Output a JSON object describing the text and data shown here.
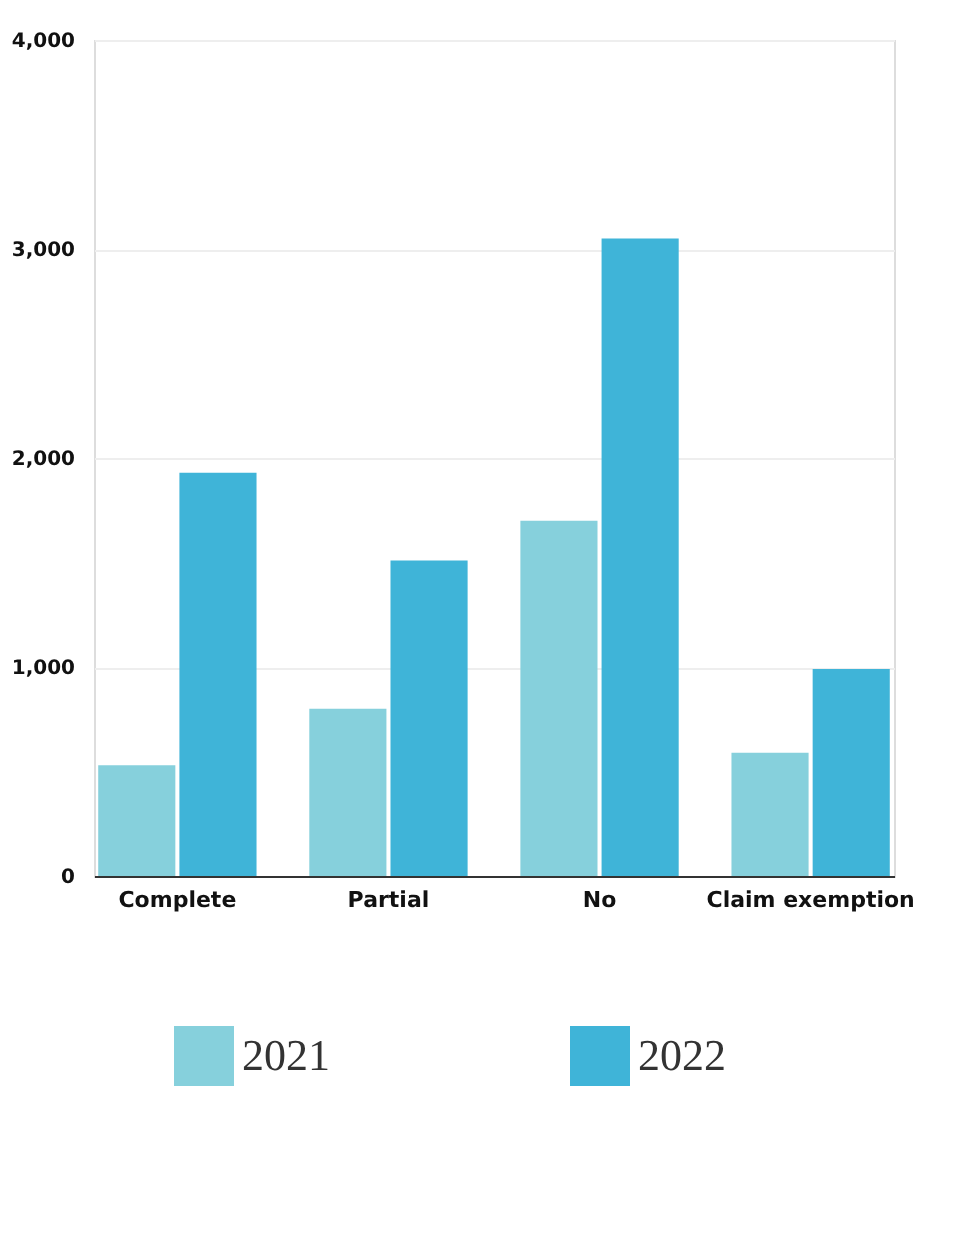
{
  "chart_data": {
    "type": "bar",
    "categories": [
      "Complete",
      "Partial",
      "No",
      "Claim exemption"
    ],
    "series": [
      {
        "name": "2021",
        "color": "#86d0dc",
        "values": [
          530,
          800,
          1700,
          590
        ]
      },
      {
        "name": "2022",
        "color": "#3fb4d8",
        "values": [
          1930,
          1510,
          3050,
          990
        ]
      }
    ],
    "ylim": [
      0,
      4000
    ],
    "yticks": [
      0,
      {
        "value": 1000,
        "label": "1,000"
      },
      {
        "value": 2000,
        "label": "2,000"
      },
      {
        "value": 3000,
        "label": "3,000"
      },
      {
        "value": 4000,
        "label": "4,000"
      }
    ],
    "grid": "y",
    "legend": "bottom"
  }
}
